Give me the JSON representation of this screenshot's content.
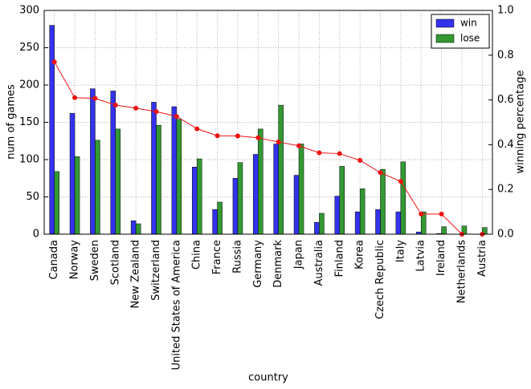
{
  "chart_data": {
    "type": "bar",
    "xlabel": "country",
    "ylabel": "num of games",
    "y2label": "winning percentage",
    "categories": [
      "Canada",
      "Norway",
      "Sweden",
      "Scotland",
      "New Zealand",
      "Switzerland",
      "United States of America",
      "China",
      "France",
      "Russia",
      "Germany",
      "Denmark",
      "Japan",
      "Australia",
      "Finland",
      "Korea",
      "Czech Republic",
      "Italy",
      "Latvia",
      "Ireland",
      "Netherlands",
      "Austria"
    ],
    "series": [
      {
        "name": "win",
        "color": "#3333ee",
        "values": [
          280,
          162,
          195,
          192,
          18,
          177,
          171,
          90,
          33,
          75,
          107,
          121,
          79,
          16,
          51,
          30,
          33,
          30,
          3,
          1,
          0,
          0
        ]
      },
      {
        "name": "lose",
        "color": "#339933",
        "values": [
          84,
          104,
          126,
          141,
          14,
          146,
          154,
          101,
          43,
          96,
          141,
          173,
          121,
          28,
          91,
          61,
          87,
          97,
          30,
          10,
          11,
          9
        ]
      }
    ],
    "line": {
      "color": "#ee1111",
      "axis": "y2",
      "values": [
        0.77,
        0.61,
        0.607,
        0.577,
        0.563,
        0.548,
        0.526,
        0.471,
        0.44,
        0.439,
        0.431,
        0.412,
        0.395,
        0.364,
        0.36,
        0.33,
        0.275,
        0.236,
        0.09,
        0.09,
        0,
        0
      ]
    },
    "ylim": [
      0,
      300
    ],
    "yticks": [
      0,
      50,
      100,
      150,
      200,
      250,
      300
    ],
    "y2lim": [
      0,
      1
    ],
    "y2ticks": [
      {
        "value": 0,
        "label": "0.0"
      },
      {
        "value": 0.2,
        "label": "0.2"
      },
      {
        "value": 0.4,
        "label": "0.4"
      },
      {
        "value": 0.6,
        "label": "0.6"
      },
      {
        "value": 0.8,
        "label": "0.8"
      },
      {
        "value": 1,
        "label": "1.0"
      }
    ],
    "grid": true,
    "legend": "upper-right"
  }
}
